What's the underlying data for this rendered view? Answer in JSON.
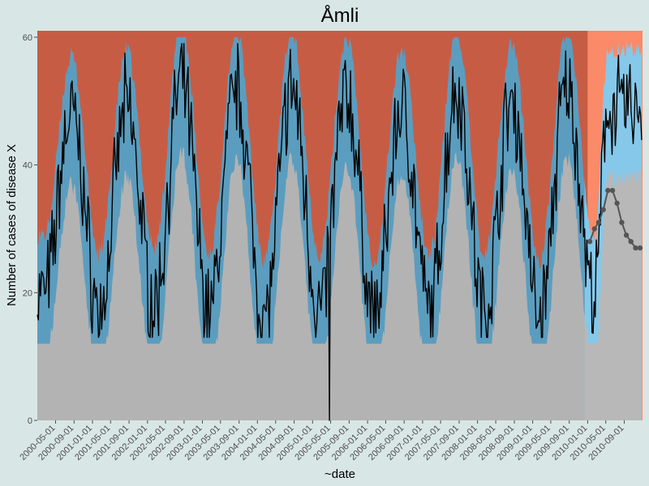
{
  "chart_data": {
    "type": "line",
    "title": "Åmli",
    "xlabel": "~date",
    "ylabel": "Number of cases of disease X",
    "ylim": [
      0,
      61
    ],
    "xlim": [
      "2000-01-01",
      "2010-12-31"
    ],
    "y_ticks": [
      0,
      20,
      40,
      60
    ],
    "x_ticks": [
      "2000-05-01",
      "2000-09-01",
      "2001-01-01",
      "2001-05-01",
      "2001-09-01",
      "2002-01-01",
      "2002-05-01",
      "2002-09-01",
      "2003-01-01",
      "2003-05-01",
      "2003-09-01",
      "2004-01-01",
      "2004-05-01",
      "2004-09-01",
      "2005-01-01",
      "2005-05-01",
      "2005-09-01",
      "2006-01-01",
      "2006-05-01",
      "2006-09-01",
      "2007-01-01",
      "2007-05-01",
      "2007-09-01",
      "2008-01-01",
      "2008-05-01",
      "2008-09-01",
      "2009-01-01",
      "2009-05-01",
      "2009-09-01",
      "2010-01-01",
      "2010-05-01",
      "2010-09-01"
    ],
    "forecast_start": "2010-01-01",
    "grid": false,
    "colors": {
      "page_bg": "#d9e6e6",
      "low_band": "#b3b3b3",
      "normal_band": "#5b9dbf",
      "high_band": "#c75c45",
      "forecast_low_band": "#b8b8b8",
      "forecast_normal_band": "#85c8ea",
      "forecast_high_band": "#fa8a68",
      "cases_line": "#000000",
      "forecast_points": "#555555"
    },
    "seasonal_peaks": [
      {
        "date": "2000-08-15",
        "cases": 48
      },
      {
        "date": "2001-08-15",
        "cases": 49
      },
      {
        "date": "2002-08-15",
        "cases": 53
      },
      {
        "date": "2003-08-15",
        "cases": 52
      },
      {
        "date": "2004-08-15",
        "cases": 52
      },
      {
        "date": "2005-08-15",
        "cases": 51
      },
      {
        "date": "2006-08-15",
        "cases": 49
      },
      {
        "date": "2007-08-15",
        "cases": 52
      },
      {
        "date": "2008-08-15",
        "cases": 50
      },
      {
        "date": "2009-08-15",
        "cases": 52
      },
      {
        "date": "2010-05-15",
        "cases": 49
      }
    ],
    "seasonal_troughs": [
      {
        "date": "2000-02-15",
        "cases": 20
      },
      {
        "date": "2001-02-15",
        "cases": 17
      },
      {
        "date": "2002-02-15",
        "cases": 18
      },
      {
        "date": "2003-02-15",
        "cases": 17
      },
      {
        "date": "2004-02-15",
        "cases": 16
      },
      {
        "date": "2005-02-15",
        "cases": 17
      },
      {
        "date": "2006-02-15",
        "cases": 16
      },
      {
        "date": "2007-02-15",
        "cases": 17
      },
      {
        "date": "2008-02-15",
        "cases": 17
      },
      {
        "date": "2009-02-15",
        "cases": 16
      },
      {
        "date": "2010-02-15",
        "cases": 19
      }
    ],
    "notable_points": [
      {
        "date": "2005-04-20",
        "cases": 0
      }
    ],
    "forecast_points": [
      {
        "date": "2010-01-15",
        "cases": 28
      },
      {
        "date": "2010-02-15",
        "cases": 30
      },
      {
        "date": "2010-03-15",
        "cases": 31
      },
      {
        "date": "2010-04-15",
        "cases": 33
      },
      {
        "date": "2010-05-15",
        "cases": 36
      },
      {
        "date": "2010-06-15",
        "cases": 36
      },
      {
        "date": "2010-07-15",
        "cases": 34
      },
      {
        "date": "2010-08-15",
        "cases": 31
      },
      {
        "date": "2010-09-15",
        "cases": 29
      },
      {
        "date": "2010-10-15",
        "cases": 28
      },
      {
        "date": "2010-11-15",
        "cases": 27
      },
      {
        "date": "2010-12-15",
        "cases": 27
      }
    ]
  }
}
